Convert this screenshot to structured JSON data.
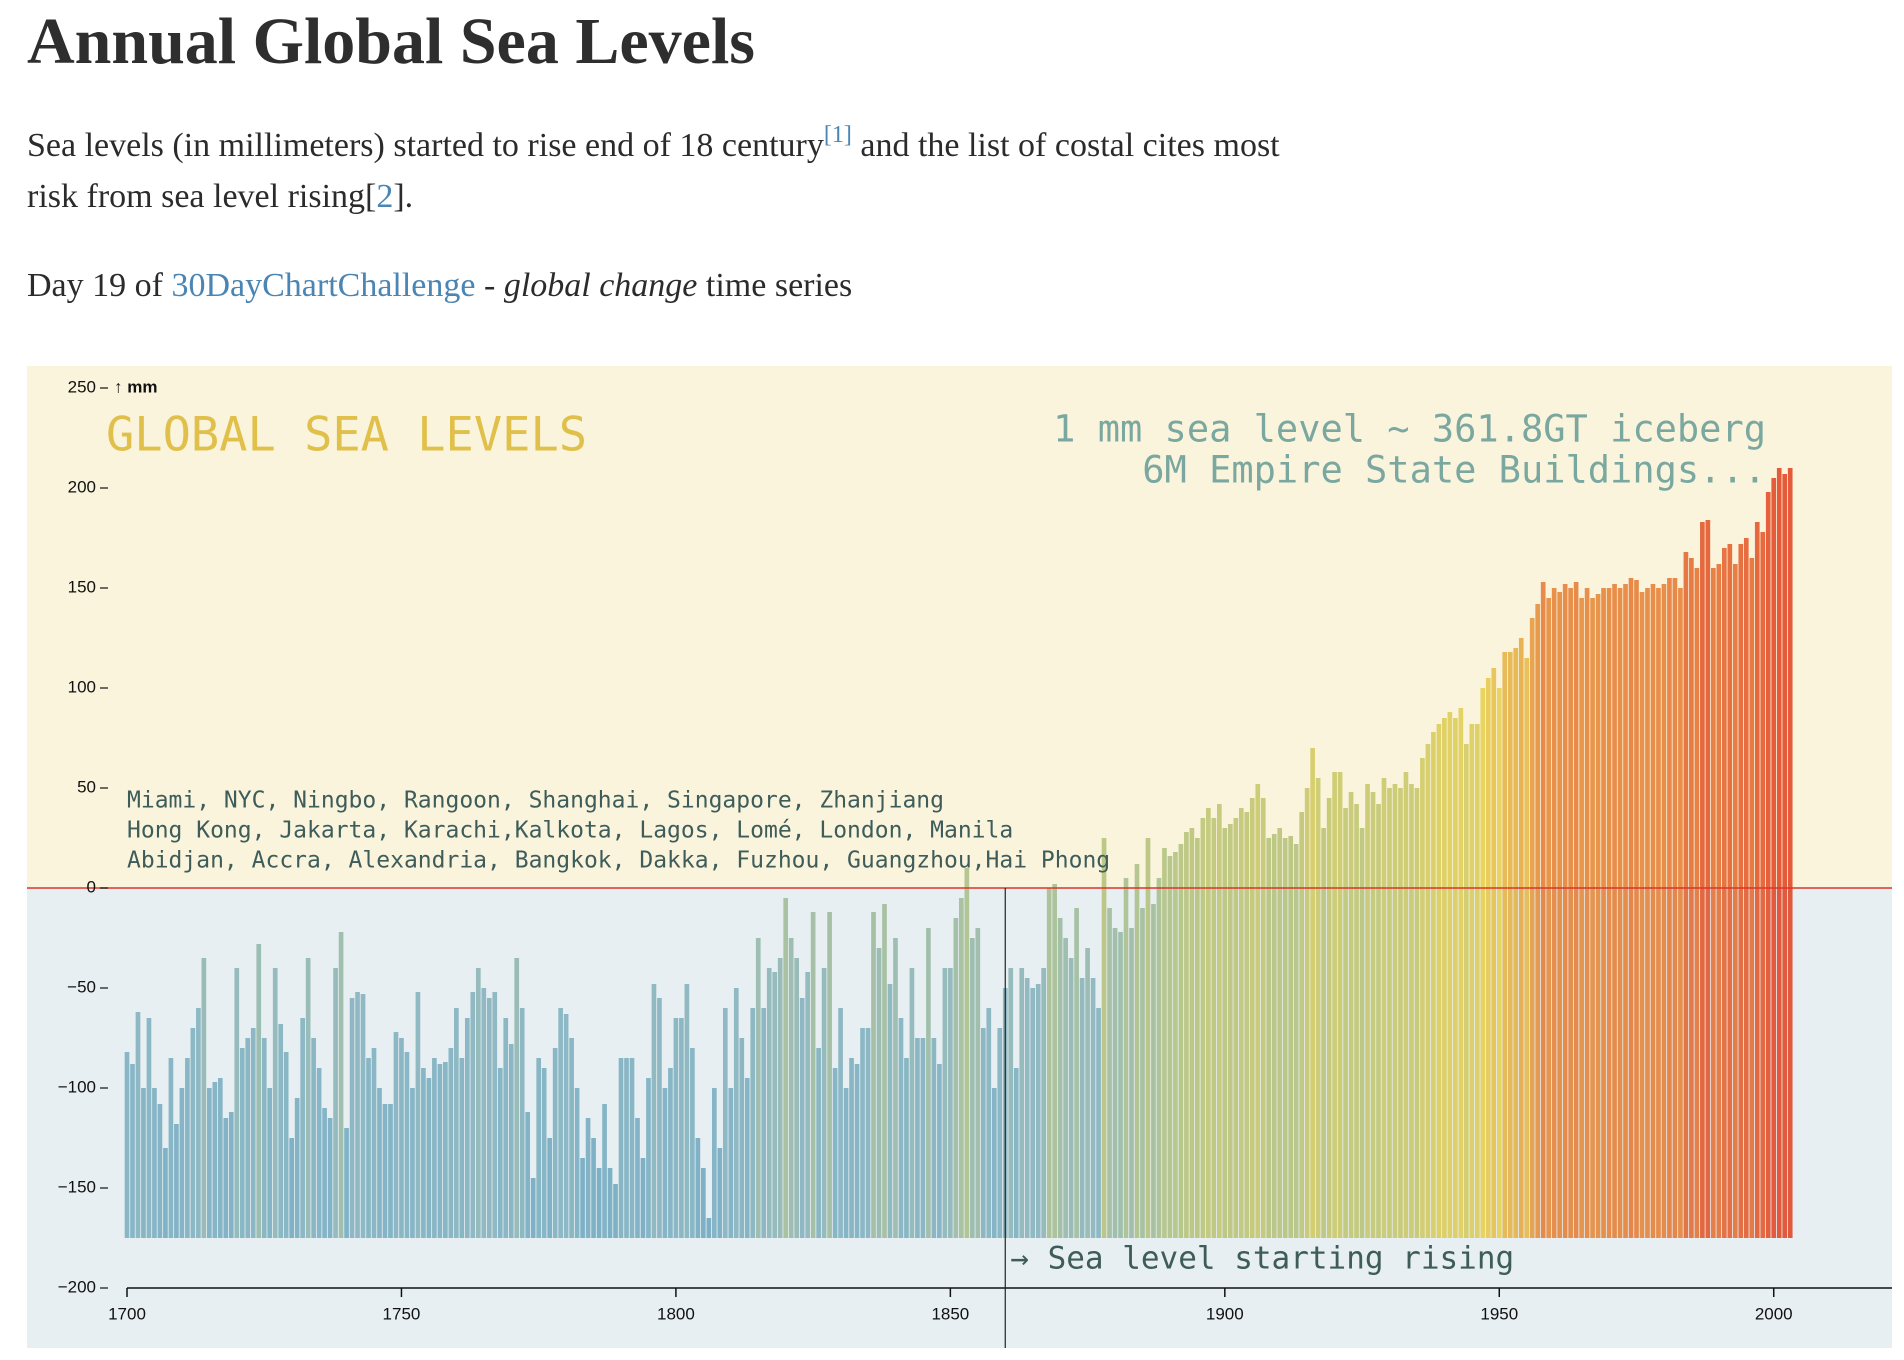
{
  "header": {
    "title": "Annual Global Sea Levels",
    "description": {
      "text": "Sea levels (in millimeters) started to rise end of 18 century",
      "ref1": "[1]",
      "text2": " and the list of costal cites most risk from sea level rising[",
      "ref2": "2",
      "text3": "]."
    },
    "subtitle": {
      "text": "Day 19 of ",
      "link": "30DayChartChallenge",
      "text2": " - ",
      "emphasis": "global change",
      "text3": " time series"
    }
  },
  "chart_data": {
    "type": "bar",
    "title": "GLOBAL SEA LEVELS",
    "subtitle": [
      "1 mm sea level ~ 361.8GT iceberg",
      "6M Empire State Buildings..."
    ],
    "cities": [
      "Miami, NYC, Ningbo, Rangoon, Shanghai, Singapore, Zhanjiang",
      "Hong Kong, Jakarta, Karachi,Kalkota, Lagos, Lomé, London, Manila",
      "Abidjan, Accra, Alexandria, Bangkok, Dakka, Fuzhou, Guangzhou,Hai Phong"
    ],
    "y_label": "↑ mm",
    "annotations": [
      {
        "text": "→ Sea level starting rising",
        "x": 1860
      }
    ],
    "zero_line_color": "#d9362b",
    "color_scale": [
      "#6aa4bc",
      "#72aac0",
      "#84b2bd",
      "#b4c27a",
      "#e6cf4e",
      "#e45a2a",
      "#dc2a1a"
    ],
    "xlim": [
      1700,
      2021
    ],
    "ylim": [
      -200,
      250
    ],
    "xticks": [
      1700,
      1750,
      1800,
      1850,
      1900,
      1950,
      2000
    ],
    "yticks": [
      {
        "value": -200,
        "label": "−200"
      },
      {
        "value": -150,
        "label": "−150"
      },
      {
        "value": -100,
        "label": "−100"
      },
      {
        "value": -50,
        "label": "−50"
      },
      0,
      50,
      100,
      150,
      200,
      250
    ],
    "x": [
      1700,
      1701,
      1702,
      1703,
      1704,
      1705,
      1706,
      1707,
      1708,
      1709,
      1710,
      1711,
      1712,
      1713,
      1714,
      1715,
      1716,
      1717,
      1718,
      1719,
      1720,
      1721,
      1722,
      1723,
      1724,
      1725,
      1726,
      1727,
      1728,
      1729,
      1730,
      1731,
      1732,
      1733,
      1734,
      1735,
      1736,
      1737,
      1738,
      1739,
      1740,
      1741,
      1742,
      1743,
      1744,
      1745,
      1746,
      1747,
      1748,
      1749,
      1750,
      1751,
      1752,
      1753,
      1754,
      1755,
      1756,
      1757,
      1758,
      1759,
      1760,
      1761,
      1762,
      1763,
      1764,
      1765,
      1766,
      1767,
      1768,
      1769,
      1770,
      1771,
      1772,
      1773,
      1774,
      1775,
      1776,
      1777,
      1778,
      1779,
      1780,
      1781,
      1782,
      1783,
      1784,
      1785,
      1786,
      1787,
      1788,
      1789,
      1790,
      1791,
      1792,
      1793,
      1794,
      1795,
      1796,
      1797,
      1798,
      1799,
      1800,
      1801,
      1802,
      1803,
      1804,
      1805,
      1806,
      1807,
      1808,
      1809,
      1810,
      1811,
      1812,
      1813,
      1814,
      1815,
      1816,
      1817,
      1818,
      1819,
      1820,
      1821,
      1822,
      1823,
      1824,
      1825,
      1826,
      1827,
      1828,
      1829,
      1830,
      1831,
      1832,
      1833,
      1834,
      1835,
      1836,
      1837,
      1838,
      1839,
      1840,
      1841,
      1842,
      1843,
      1844,
      1845,
      1846,
      1847,
      1848,
      1849,
      1850,
      1851,
      1852,
      1853,
      1854,
      1855,
      1856,
      1857,
      1858,
      1859,
      1860,
      1861,
      1862,
      1863,
      1864,
      1865,
      1866,
      1867,
      1868,
      1869,
      1870,
      1871,
      1872,
      1873,
      1874,
      1875,
      1876,
      1877,
      1878,
      1879,
      1880,
      1881,
      1882,
      1883,
      1884,
      1885,
      1886,
      1887,
      1888,
      1889,
      1890,
      1891,
      1892,
      1893,
      1894,
      1895,
      1896,
      1897,
      1898,
      1899,
      1900,
      1901,
      1902,
      1903,
      1904,
      1905,
      1906,
      1907,
      1908,
      1909,
      1910,
      1911,
      1912,
      1913,
      1914,
      1915,
      1916,
      1917,
      1918,
      1919,
      1920,
      1921,
      1922,
      1923,
      1924,
      1925,
      1926,
      1927,
      1928,
      1929,
      1930,
      1931,
      1932,
      1933,
      1934,
      1935,
      1936,
      1937,
      1938,
      1939,
      1940,
      1941,
      1942,
      1943,
      1944,
      1945,
      1946,
      1947,
      1948,
      1949,
      1950,
      1951,
      1952,
      1953,
      1954,
      1955,
      1956,
      1957,
      1958,
      1959,
      1960,
      1961,
      1962,
      1963,
      1964,
      1965,
      1966,
      1967,
      1968,
      1969,
      1970,
      1971,
      1972,
      1973,
      1974,
      1975,
      1976,
      1977,
      1978,
      1979,
      1980,
      1981,
      1982,
      1983,
      1984,
      1985,
      1986,
      1987,
      1988,
      1989,
      1990,
      1991,
      1992,
      1993,
      1994,
      1995,
      1996,
      1997,
      1998,
      1999,
      2000,
      2001,
      2002,
      2003
    ],
    "values": [
      -82,
      -88,
      -62,
      -100,
      -65,
      -100,
      -108,
      -130,
      -85,
      -118,
      -100,
      -85,
      -70,
      -60,
      -35,
      -100,
      -97,
      -95,
      -115,
      -112,
      -40,
      -80,
      -75,
      -70,
      -28,
      -75,
      -100,
      -40,
      -68,
      -82,
      -125,
      -105,
      -65,
      -35,
      -75,
      -90,
      -110,
      -115,
      -40,
      -22,
      -120,
      -55,
      -52,
      -53,
      -85,
      -80,
      -100,
      -108,
      -108,
      -72,
      -75,
      -82,
      -100,
      -52,
      -90,
      -95,
      -85,
      -88,
      -87,
      -80,
      -60,
      -85,
      -65,
      -52,
      -40,
      -50,
      -55,
      -52,
      -90,
      -65,
      -78,
      -35,
      -60,
      -112,
      -145,
      -85,
      -90,
      -125,
      -80,
      -60,
      -63,
      -75,
      -100,
      -135,
      -115,
      -125,
      -140,
      -108,
      -140,
      -148,
      -85,
      -85,
      -85,
      -115,
      -135,
      -95,
      -48,
      -55,
      -100,
      -90,
      -65,
      -65,
      -48,
      -80,
      -125,
      -140,
      -165,
      -100,
      -130,
      -60,
      -100,
      -50,
      -75,
      -95,
      -60,
      -25,
      -60,
      -40,
      -42,
      -35,
      -5,
      -25,
      -35,
      -55,
      -42,
      -12,
      -80,
      -40,
      -12,
      -90,
      -60,
      -100,
      -85,
      -88,
      -70,
      -70,
      -12,
      -30,
      -8,
      -48,
      -25,
      -65,
      -85,
      -40,
      -75,
      -75,
      -20,
      -75,
      -88,
      -40,
      -40,
      -15,
      -5,
      10,
      -25,
      -20,
      -70,
      -60,
      -100,
      -70,
      -50,
      -40,
      -90,
      -40,
      -45,
      -50,
      -48,
      -40,
      0,
      2,
      -15,
      -25,
      -35,
      -10,
      -45,
      -30,
      -45,
      -60,
      25,
      -10,
      -20,
      -22,
      5,
      -20,
      12,
      -10,
      25,
      -8,
      5,
      20,
      16,
      18,
      22,
      28,
      30,
      25,
      35,
      40,
      35,
      42,
      30,
      32,
      35,
      40,
      38,
      45,
      52,
      45,
      25,
      27,
      30,
      25,
      26,
      22,
      38,
      50,
      70,
      55,
      30,
      45,
      58,
      58,
      40,
      48,
      42,
      30,
      52,
      48,
      42,
      55,
      50,
      52,
      50,
      58,
      52,
      50,
      65,
      72,
      78,
      82,
      85,
      88,
      85,
      90,
      72,
      82,
      82,
      100,
      105,
      110,
      100,
      118,
      118,
      120,
      125,
      115,
      135,
      142,
      153,
      145,
      150,
      148,
      152,
      150,
      153,
      145,
      150,
      145,
      147,
      150,
      150,
      152,
      150,
      152,
      155,
      154,
      148,
      150,
      152,
      150,
      152,
      155,
      155,
      150,
      168,
      165,
      160,
      183,
      184,
      160,
      162,
      170,
      172,
      162,
      172,
      175,
      165,
      183,
      178,
      198,
      205,
      210,
      207,
      210
    ]
  }
}
